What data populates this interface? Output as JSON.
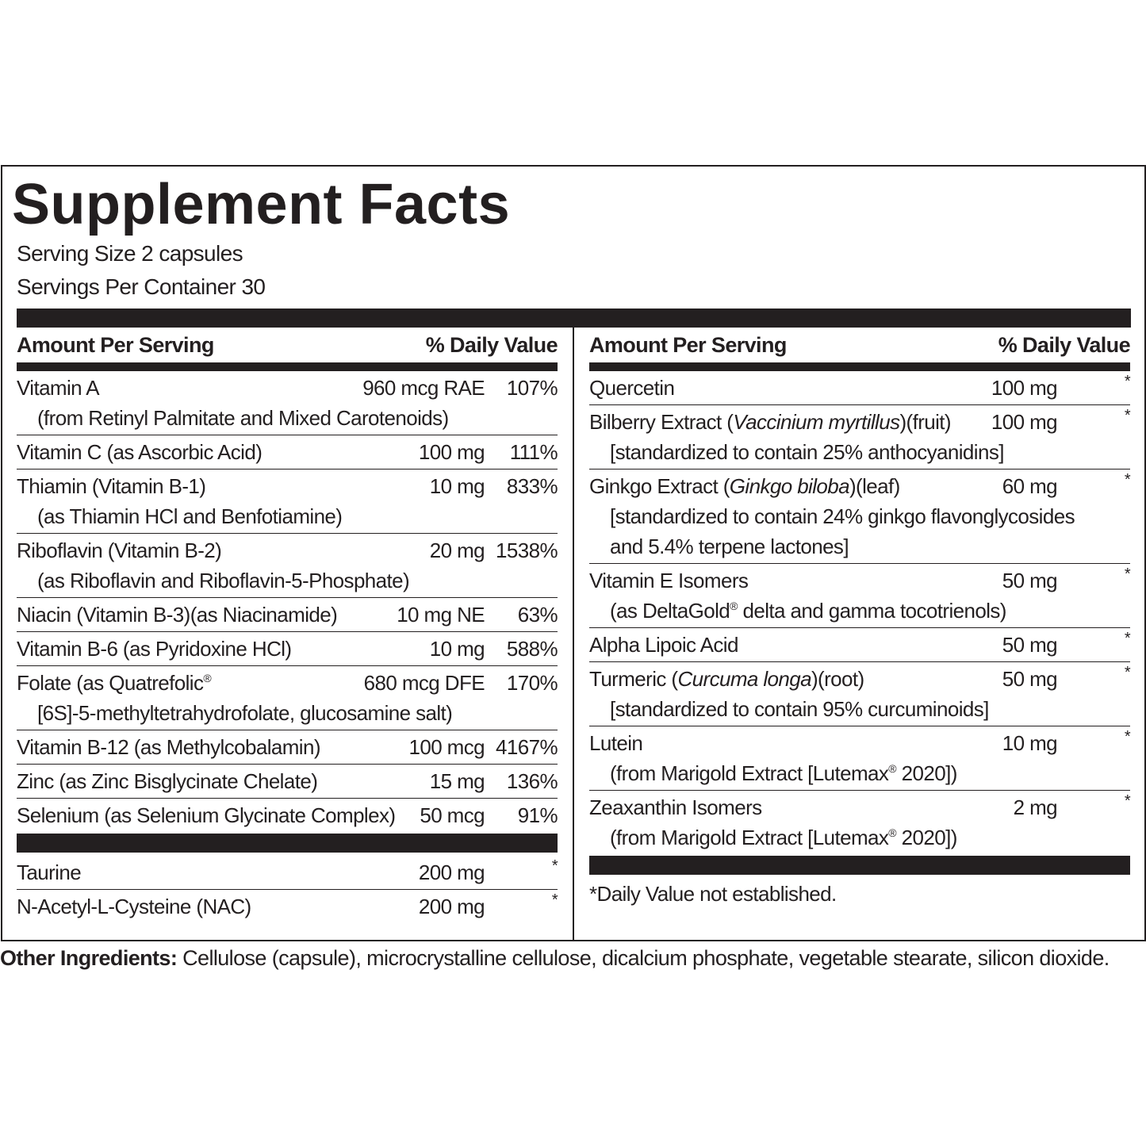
{
  "title": "Supplement Facts",
  "serving_size": "Serving Size 2 capsules",
  "servings_per_container": "Servings Per Container 30",
  "left": {
    "header": {
      "amount": "Amount Per Serving",
      "dv": "% Daily Value"
    },
    "rows": [
      {
        "name": "Vitamin A",
        "amount": "960 mcg RAE",
        "dv": "107%",
        "notes": [
          "(from Retinyl Palmitate and Mixed Carotenoids)"
        ]
      },
      {
        "name": "Vitamin C (as Ascorbic Acid)",
        "amount": "100 mg",
        "dv": "111%"
      },
      {
        "name": "Thiamin (Vitamin B-1)",
        "amount": "10 mg",
        "dv": "833%",
        "notes": [
          "(as Thiamin HCl and Benfotiamine)"
        ]
      },
      {
        "name": "Riboflavin (Vitamin B-2)",
        "amount": "20 mg",
        "dv": "1538%",
        "notes": [
          "(as Riboflavin and Riboflavin-5-Phosphate)"
        ]
      },
      {
        "name": "Niacin (Vitamin B-3)(as Niacinamide)",
        "amount": "10 mg NE",
        "dv": "63%"
      },
      {
        "name": "Vitamin B-6 (as Pyridoxine HCl)",
        "amount": "10 mg",
        "dv": "588%"
      },
      {
        "name": [
          {
            "text": "Folate (as Quatrefolic"
          },
          {
            "text": "®",
            "style": "sup"
          }
        ],
        "amount": "680 mcg DFE",
        "dv": "170%",
        "notes": [
          "[6S]-5-methyltetrahydrofolate, glucosamine salt)"
        ]
      },
      {
        "name": "Vitamin B-12 (as Methylcobalamin)",
        "amount": "100 mcg",
        "dv": "4167%"
      },
      {
        "name": "Zinc (as Zinc Bisglycinate Chelate)",
        "amount": "15 mg",
        "dv": "136%"
      },
      {
        "name": "Selenium (as Selenium Glycinate Complex)",
        "amount": "50 mcg",
        "dv": "91%"
      }
    ],
    "extra_rows": [
      {
        "name": "Taurine",
        "amount": "200 mg",
        "dv": "*"
      },
      {
        "name": "N-Acetyl-L-Cysteine (NAC)",
        "amount": "200 mg",
        "dv": "*"
      }
    ]
  },
  "right": {
    "header": {
      "amount": "Amount Per Serving",
      "dv": "% Daily Value"
    },
    "rows": [
      {
        "name": "Quercetin",
        "amount": "100 mg",
        "dv": "*"
      },
      {
        "name": [
          {
            "text": "Bilberry Extract ("
          },
          {
            "text": "Vaccinium myrtillus",
            "style": "italic"
          },
          {
            "text": ")(fruit)"
          }
        ],
        "amount": "100 mg",
        "dv": "*",
        "notes": [
          "[standardized to contain 25% anthocyanidins]"
        ]
      },
      {
        "name": [
          {
            "text": "Ginkgo Extract ("
          },
          {
            "text": "Ginkgo biloba",
            "style": "italic"
          },
          {
            "text": ")(leaf)"
          }
        ],
        "amount": "60 mg",
        "dv": "*",
        "notes": [
          "[standardized to contain 24% ginkgo flavonglycosides",
          "and 5.4% terpene lactones]"
        ]
      },
      {
        "name": "Vitamin E Isomers",
        "amount": "50 mg",
        "dv": "*",
        "notes": [
          [
            {
              "text": "(as DeltaGold"
            },
            {
              "text": "®",
              "style": "sup"
            },
            {
              "text": " delta and gamma tocotrienols)"
            }
          ]
        ]
      },
      {
        "name": "Alpha Lipoic Acid",
        "amount": "50 mg",
        "dv": "*"
      },
      {
        "name": [
          {
            "text": "Turmeric ("
          },
          {
            "text": "Curcuma longa",
            "style": "italic"
          },
          {
            "text": ")(root)"
          }
        ],
        "amount": "50 mg",
        "dv": "*",
        "notes": [
          "[standardized to contain 95% curcuminoids]"
        ]
      },
      {
        "name": "Lutein",
        "amount": "10 mg",
        "dv": "*",
        "notes": [
          [
            {
              "text": "(from Marigold Extract [Lutemax"
            },
            {
              "text": "®",
              "style": "sup"
            },
            {
              "text": " 2020])"
            }
          ]
        ]
      },
      {
        "name": "Zeaxanthin Isomers",
        "amount": "2 mg",
        "dv": "*",
        "notes": [
          [
            {
              "text": "(from Marigold Extract [Lutemax"
            },
            {
              "text": "®",
              "style": "sup"
            },
            {
              "text": " 2020])"
            }
          ]
        ]
      }
    ],
    "footnote": "*Daily Value not established."
  },
  "other_ingredients": {
    "label": "Other Ingredients:",
    "text": "Cellulose (capsule), microcrystalline cellulose, dicalcium phosphate, vegetable stearate, silicon dioxide."
  }
}
